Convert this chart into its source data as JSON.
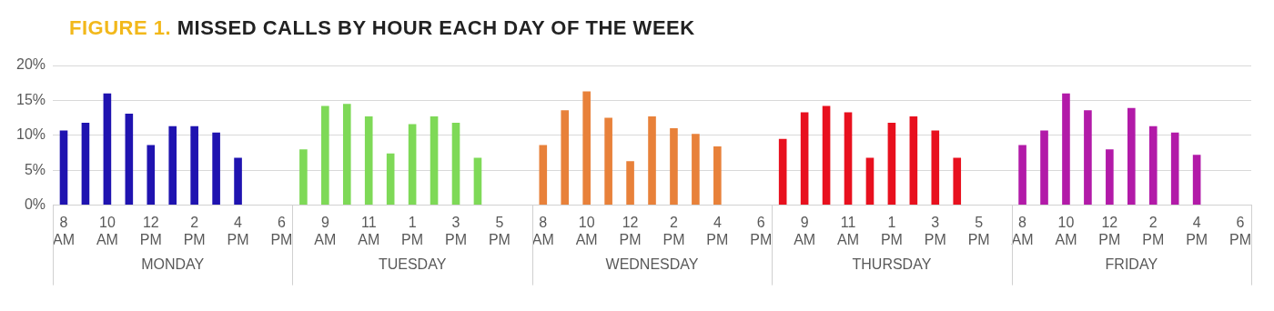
{
  "chart_data": {
    "type": "bar",
    "title": "FIGURE 1. MISSED CALLS BY HOUR EACH DAY OF THE WEEK",
    "categories": [
      "8 AM",
      null,
      "10 AM",
      null,
      "12 PM",
      null,
      "2 PM",
      null,
      "4 PM",
      null,
      "6 PM",
      null,
      "9 AM",
      null,
      "11 AM",
      null,
      "1 PM",
      null,
      "3 PM",
      null,
      "5 PM",
      null,
      "8 AM",
      null,
      "10 AM",
      null,
      "12 PM",
      null,
      "2 PM",
      null,
      "4 PM",
      null,
      "6 PM",
      null,
      "9 AM",
      null,
      "11 AM",
      null,
      "1 PM",
      null,
      "3 PM",
      null,
      "5 PM",
      null,
      "8 AM",
      null,
      "10 AM",
      null,
      "12 PM",
      null,
      "2 PM",
      null,
      "4 PM",
      null,
      "6 PM"
    ],
    "values": [
      10.7,
      11.8,
      16.0,
      13.1,
      8.6,
      11.3,
      11.3,
      10.4,
      6.8,
      null,
      null,
      8.0,
      14.2,
      14.5,
      12.7,
      7.4,
      11.6,
      12.7,
      11.8,
      6.8,
      null,
      null,
      8.6,
      13.6,
      16.3,
      12.5,
      6.3,
      12.7,
      11.0,
      10.2,
      8.4,
      null,
      null,
      9.5,
      13.3,
      14.2,
      13.3,
      6.8,
      11.8,
      12.7,
      10.7,
      6.8,
      null,
      null,
      8.6,
      10.7,
      16.0,
      13.6,
      8.0,
      13.9,
      11.3,
      10.4,
      7.2,
      null,
      null
    ],
    "colors": [
      "#1f13b0",
      "#1f13b0",
      "#1f13b0",
      "#1f13b0",
      "#1f13b0",
      "#1f13b0",
      "#1f13b0",
      "#1f13b0",
      "#1f13b0",
      "#1f13b0",
      "#1f13b0",
      "#7ed957",
      "#7ed957",
      "#7ed957",
      "#7ed957",
      "#7ed957",
      "#7ed957",
      "#7ed957",
      "#7ed957",
      "#7ed957",
      "#7ed957",
      "#7ed957",
      "#e8813a",
      "#e8813a",
      "#e8813a",
      "#e8813a",
      "#e8813a",
      "#e8813a",
      "#e8813a",
      "#e8813a",
      "#e8813a",
      "#e8813a",
      "#e8813a",
      "#e8101e",
      "#e8101e",
      "#e8101e",
      "#e8101e",
      "#e8101e",
      "#e8101e",
      "#e8101e",
      "#e8101e",
      "#e8101e",
      "#e8101e",
      "#e8101e",
      "#b21aa8",
      "#b21aa8",
      "#b21aa8",
      "#b21aa8",
      "#b21aa8",
      "#b21aa8",
      "#b21aa8",
      "#b21aa8",
      "#b21aa8",
      "#b21aa8",
      "#b21aa8"
    ],
    "ylim": [
      0,
      20
    ],
    "yticks": [
      {
        "value": 0,
        "label": "0%"
      },
      {
        "value": 5,
        "label": "5%"
      },
      {
        "value": 10,
        "label": "10%"
      },
      {
        "value": 15,
        "label": "15%"
      },
      {
        "value": 20,
        "label": "20%"
      }
    ],
    "grid": "y",
    "annotations": [
      "MONDAY",
      "TUESDAY",
      "WEDNESDAY",
      "THURSDAY",
      "FRIDAY"
    ]
  }
}
